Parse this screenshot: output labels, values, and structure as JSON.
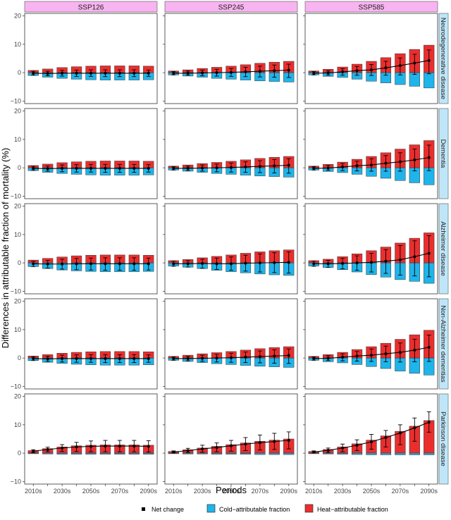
{
  "chart_data": {
    "type": "bar",
    "title": "",
    "xlabel": "Periods",
    "ylabel": "Differences in attributable fraction of mortality (%)",
    "ylim": [
      -10,
      20
    ],
    "yticks": [
      -10,
      0,
      10,
      20
    ],
    "categories": [
      "2010s",
      "2020s",
      "2030s",
      "2040s",
      "2050s",
      "2060s",
      "2070s",
      "2080s",
      "2090s"
    ],
    "xtick_labels": [
      "2010s",
      "2030s",
      "2050s",
      "2070s",
      "2090s"
    ],
    "scenarios": [
      "SSP126",
      "SSP245",
      "SSP585"
    ],
    "diseases": [
      "Neurodegenerative disease",
      "Dementia",
      "Alzheimer disease",
      "Non-Alzheimer dementias",
      "Parkinson disease"
    ],
    "legend": {
      "net": "Net change",
      "cold": "Cold−attributable fraction",
      "heat": "Heat−attributable fraction"
    },
    "colors": {
      "cold": "#1fb4ea",
      "heat": "#ea2e2e",
      "strip_top": "#f8b4f0",
      "strip_right": "#bfe6f8",
      "net": "#000000"
    },
    "panels": [
      {
        "scenario": "SSP126",
        "disease": "Neurodegenerative disease",
        "heat": [
          0.8,
          1.3,
          1.8,
          2.1,
          2.3,
          2.4,
          2.4,
          2.4,
          2.3
        ],
        "cold": [
          -1.0,
          -1.6,
          -2.0,
          -2.3,
          -2.5,
          -2.6,
          -2.6,
          -2.6,
          -2.5
        ],
        "net": [
          -0.2,
          -0.3,
          -0.2,
          -0.2,
          -0.2,
          -0.2,
          -0.2,
          -0.2,
          -0.2
        ],
        "err": [
          [
            -0.9,
            0.5
          ],
          [
            -1.1,
            0.5
          ],
          [
            -1.2,
            0.8
          ],
          [
            -1.3,
            0.9
          ],
          [
            -1.3,
            1.0
          ],
          [
            -1.4,
            1.0
          ],
          [
            -1.4,
            1.0
          ],
          [
            -1.4,
            1.0
          ],
          [
            -1.3,
            0.9
          ]
        ]
      },
      {
        "scenario": "SSP245",
        "disease": "Neurodegenerative disease",
        "heat": [
          0.6,
          1.0,
          1.5,
          1.9,
          2.3,
          2.8,
          3.3,
          3.7,
          4.0
        ],
        "cold": [
          -0.8,
          -1.2,
          -1.6,
          -2.0,
          -2.3,
          -2.6,
          -2.9,
          -3.1,
          -3.3
        ],
        "net": [
          -0.2,
          -0.2,
          -0.1,
          0.0,
          0.1,
          0.3,
          0.5,
          0.7,
          0.9
        ],
        "err": [
          [
            -0.8,
            0.4
          ],
          [
            -0.9,
            0.6
          ],
          [
            -1.1,
            0.9
          ],
          [
            -1.2,
            1.2
          ],
          [
            -1.3,
            1.5
          ],
          [
            -1.4,
            1.9
          ],
          [
            -1.5,
            2.3
          ],
          [
            -1.6,
            2.7
          ],
          [
            -1.7,
            3.0
          ]
        ]
      },
      {
        "scenario": "SSP585",
        "disease": "Neurodegenerative disease",
        "heat": [
          0.6,
          1.2,
          2.0,
          3.0,
          4.0,
          5.3,
          6.7,
          8.2,
          9.7
        ],
        "cold": [
          -0.8,
          -1.3,
          -1.7,
          -2.3,
          -3.0,
          -3.6,
          -4.2,
          -4.8,
          -5.4
        ],
        "net": [
          -0.2,
          -0.1,
          0.3,
          0.7,
          1.0,
          1.7,
          2.5,
          3.4,
          4.3
        ],
        "err": [
          [
            -0.8,
            0.4
          ],
          [
            -0.9,
            0.7
          ],
          [
            -0.9,
            1.4
          ],
          [
            -0.9,
            2.2
          ],
          [
            -1.0,
            2.9
          ],
          [
            -0.9,
            4.0
          ],
          [
            -0.8,
            5.2
          ],
          [
            -0.6,
            6.5
          ],
          [
            -0.4,
            8.0
          ]
        ]
      },
      {
        "scenario": "SSP126",
        "disease": "Dementia",
        "heat": [
          0.8,
          1.3,
          1.8,
          2.1,
          2.3,
          2.4,
          2.4,
          2.4,
          2.3
        ],
        "cold": [
          -1.0,
          -1.6,
          -2.0,
          -2.3,
          -2.5,
          -2.6,
          -2.6,
          -2.6,
          -2.5
        ],
        "net": [
          -0.2,
          -0.3,
          -0.2,
          -0.2,
          -0.2,
          -0.2,
          -0.2,
          -0.2,
          -0.2
        ],
        "err": [
          [
            -0.9,
            0.5
          ],
          [
            -1.2,
            0.6
          ],
          [
            -1.4,
            1.0
          ],
          [
            -1.5,
            1.1
          ],
          [
            -1.5,
            1.2
          ],
          [
            -1.6,
            1.2
          ],
          [
            -1.6,
            1.2
          ],
          [
            -1.6,
            1.2
          ],
          [
            -1.5,
            1.1
          ]
        ]
      },
      {
        "scenario": "SSP245",
        "disease": "Dementia",
        "heat": [
          0.6,
          1.0,
          1.5,
          1.9,
          2.3,
          2.8,
          3.3,
          3.7,
          4.0
        ],
        "cold": [
          -0.8,
          -1.2,
          -1.6,
          -2.0,
          -2.3,
          -2.6,
          -2.9,
          -3.1,
          -3.3
        ],
        "net": [
          -0.2,
          -0.2,
          -0.1,
          0.0,
          0.1,
          0.3,
          0.5,
          0.7,
          0.9
        ],
        "err": [
          [
            -0.8,
            0.4
          ],
          [
            -1.0,
            0.6
          ],
          [
            -1.2,
            1.0
          ],
          [
            -1.4,
            1.3
          ],
          [
            -1.5,
            1.7
          ],
          [
            -1.6,
            2.1
          ],
          [
            -1.7,
            2.5
          ],
          [
            -1.8,
            2.9
          ],
          [
            -1.9,
            3.2
          ]
        ]
      },
      {
        "scenario": "SSP585",
        "disease": "Dementia",
        "heat": [
          0.6,
          1.2,
          2.0,
          3.0,
          4.0,
          5.3,
          6.6,
          8.1,
          9.6
        ],
        "cold": [
          -0.8,
          -1.3,
          -1.7,
          -2.3,
          -3.0,
          -3.7,
          -4.5,
          -5.3,
          -6.0
        ],
        "net": [
          -0.2,
          -0.1,
          0.3,
          0.7,
          1.0,
          1.6,
          2.1,
          2.8,
          3.6
        ],
        "err": [
          [
            -0.8,
            0.4
          ],
          [
            -0.9,
            0.8
          ],
          [
            -1.0,
            1.5
          ],
          [
            -1.1,
            2.3
          ],
          [
            -1.2,
            3.2
          ],
          [
            -1.2,
            4.3
          ],
          [
            -1.2,
            5.3
          ],
          [
            -1.1,
            6.6
          ],
          [
            -1.0,
            8.0
          ]
        ]
      },
      {
        "scenario": "SSP126",
        "disease": "Alzheimer disease",
        "heat": [
          1.0,
          1.6,
          2.1,
          2.5,
          2.7,
          2.8,
          2.8,
          2.8,
          2.7
        ],
        "cold": [
          -1.3,
          -2.0,
          -2.5,
          -2.8,
          -3.0,
          -3.1,
          -3.1,
          -3.1,
          -3.0
        ],
        "net": [
          -0.3,
          -0.4,
          -0.4,
          -0.3,
          -0.3,
          -0.3,
          -0.3,
          -0.3,
          -0.3
        ],
        "err": [
          [
            -1.3,
            0.6
          ],
          [
            -1.8,
            0.9
          ],
          [
            -2.2,
            1.3
          ],
          [
            -2.4,
            1.6
          ],
          [
            -2.5,
            1.7
          ],
          [
            -2.6,
            1.8
          ],
          [
            -2.6,
            1.8
          ],
          [
            -2.6,
            1.8
          ],
          [
            -2.5,
            1.7
          ]
        ]
      },
      {
        "scenario": "SSP245",
        "disease": "Alzheimer disease",
        "heat": [
          0.8,
          1.2,
          1.8,
          2.3,
          2.8,
          3.4,
          3.9,
          4.3,
          4.6
        ],
        "cold": [
          -1.1,
          -1.5,
          -2.0,
          -2.6,
          -3.1,
          -3.5,
          -3.9,
          -4.2,
          -4.4
        ],
        "net": [
          -0.3,
          -0.3,
          -0.2,
          -0.3,
          -0.3,
          -0.1,
          0.0,
          0.1,
          0.2
        ],
        "err": [
          [
            -1.2,
            0.6
          ],
          [
            -1.5,
            0.8
          ],
          [
            -1.9,
            1.3
          ],
          [
            -2.3,
            1.7
          ],
          [
            -2.6,
            2.1
          ],
          [
            -2.9,
            2.7
          ],
          [
            -3.2,
            3.2
          ],
          [
            -3.4,
            3.6
          ],
          [
            -3.6,
            3.9
          ]
        ]
      },
      {
        "scenario": "SSP585",
        "disease": "Alzheimer disease",
        "heat": [
          0.8,
          1.3,
          2.2,
          3.2,
          4.3,
          5.6,
          7.0,
          8.7,
          10.6
        ],
        "cold": [
          -1.1,
          -1.6,
          -2.4,
          -3.2,
          -4.1,
          -5.0,
          -5.9,
          -6.5,
          -7.2
        ],
        "net": [
          -0.3,
          -0.3,
          -0.2,
          0.0,
          0.2,
          0.6,
          1.1,
          2.2,
          3.4
        ],
        "err": [
          [
            -1.2,
            0.6
          ],
          [
            -1.6,
            0.9
          ],
          [
            -2.1,
            1.6
          ],
          [
            -2.6,
            2.5
          ],
          [
            -3.2,
            3.4
          ],
          [
            -3.7,
            4.7
          ],
          [
            -4.3,
            6.1
          ],
          [
            -4.6,
            7.8
          ],
          [
            -4.9,
            9.6
          ]
        ]
      },
      {
        "scenario": "SSP126",
        "disease": "Non-Alzheimer dementias",
        "heat": [
          0.7,
          1.2,
          1.7,
          2.0,
          2.2,
          2.3,
          2.3,
          2.3,
          2.2
        ],
        "cold": [
          -0.9,
          -1.5,
          -1.9,
          -2.2,
          -2.4,
          -2.5,
          -2.5,
          -2.5,
          -2.4
        ],
        "net": [
          -0.2,
          -0.3,
          -0.2,
          -0.2,
          -0.2,
          -0.2,
          -0.2,
          -0.2,
          -0.2
        ],
        "err": [
          [
            -0.9,
            0.5
          ],
          [
            -1.2,
            0.6
          ],
          [
            -1.4,
            1.0
          ],
          [
            -1.5,
            1.1
          ],
          [
            -1.5,
            1.2
          ],
          [
            -1.6,
            1.2
          ],
          [
            -1.6,
            1.2
          ],
          [
            -1.6,
            1.2
          ],
          [
            -1.5,
            1.1
          ]
        ]
      },
      {
        "scenario": "SSP245",
        "disease": "Non-Alzheimer dementias",
        "heat": [
          0.6,
          1.0,
          1.5,
          1.9,
          2.3,
          2.8,
          3.3,
          3.7,
          4.0
        ],
        "cold": [
          -0.8,
          -1.2,
          -1.6,
          -2.0,
          -2.3,
          -2.6,
          -2.9,
          -3.1,
          -3.3
        ],
        "net": [
          -0.2,
          -0.2,
          -0.1,
          0.0,
          0.1,
          0.3,
          0.5,
          0.7,
          0.9
        ],
        "err": [
          [
            -0.8,
            0.4
          ],
          [
            -1.0,
            0.6
          ],
          [
            -1.2,
            1.0
          ],
          [
            -1.4,
            1.3
          ],
          [
            -1.5,
            1.7
          ],
          [
            -1.6,
            2.1
          ],
          [
            -1.7,
            2.5
          ],
          [
            -1.8,
            2.9
          ],
          [
            -1.9,
            3.2
          ]
        ]
      },
      {
        "scenario": "SSP585",
        "disease": "Non-Alzheimer dementias",
        "heat": [
          0.6,
          1.2,
          2.0,
          3.0,
          4.0,
          5.2,
          6.6,
          8.2,
          9.8
        ],
        "cold": [
          -0.8,
          -1.3,
          -1.7,
          -2.3,
          -3.0,
          -3.7,
          -4.6,
          -5.4,
          -6.0
        ],
        "net": [
          -0.2,
          -0.1,
          0.3,
          0.7,
          1.0,
          1.5,
          2.0,
          2.8,
          3.8
        ],
        "err": [
          [
            -0.8,
            0.4
          ],
          [
            -0.9,
            0.8
          ],
          [
            -1.0,
            1.5
          ],
          [
            -1.1,
            2.3
          ],
          [
            -1.2,
            3.2
          ],
          [
            -1.3,
            4.2
          ],
          [
            -1.4,
            5.3
          ],
          [
            -1.3,
            6.6
          ],
          [
            -1.2,
            8.1
          ]
        ]
      },
      {
        "scenario": "SSP126",
        "disease": "Parkinson disease",
        "heat": [
          0.9,
          1.6,
          2.2,
          2.6,
          2.8,
          2.9,
          2.9,
          2.9,
          2.8
        ],
        "cold": [
          -0.2,
          -0.3,
          -0.4,
          -0.4,
          -0.4,
          -0.4,
          -0.4,
          -0.4,
          -0.4
        ],
        "net": [
          0.7,
          1.3,
          1.8,
          2.2,
          2.4,
          2.5,
          2.5,
          2.5,
          2.4
        ],
        "err": [
          [
            0.2,
            1.2
          ],
          [
            0.5,
            2.1
          ],
          [
            0.6,
            3.0
          ],
          [
            0.6,
            3.8
          ],
          [
            0.5,
            4.3
          ],
          [
            0.5,
            4.5
          ],
          [
            0.5,
            4.5
          ],
          [
            0.5,
            4.5
          ],
          [
            0.4,
            4.4
          ]
        ]
      },
      {
        "scenario": "SSP245",
        "disease": "Parkinson disease",
        "heat": [
          0.6,
          1.2,
          1.8,
          2.4,
          3.0,
          3.6,
          4.2,
          4.6,
          5.0
        ],
        "cold": [
          -0.2,
          -0.3,
          -0.3,
          -0.4,
          -0.4,
          -0.4,
          -0.5,
          -0.5,
          -0.5
        ],
        "net": [
          0.4,
          0.9,
          1.5,
          2.0,
          2.6,
          3.2,
          3.7,
          4.1,
          4.5
        ],
        "err": [
          [
            0.1,
            0.8
          ],
          [
            0.2,
            1.7
          ],
          [
            0.3,
            2.8
          ],
          [
            0.5,
            3.6
          ],
          [
            0.7,
            4.5
          ],
          [
            0.9,
            5.5
          ],
          [
            1.1,
            6.4
          ],
          [
            1.3,
            7.0
          ],
          [
            1.5,
            7.5
          ]
        ]
      },
      {
        "scenario": "SSP585",
        "disease": "Parkinson disease",
        "heat": [
          0.6,
          1.3,
          2.2,
          3.3,
          4.6,
          6.1,
          7.7,
          9.5,
          11.5
        ],
        "cold": [
          -0.2,
          -0.3,
          -0.4,
          -0.5,
          -0.6,
          -0.6,
          -0.6,
          -0.6,
          -0.6
        ],
        "net": [
          0.4,
          1.0,
          1.8,
          2.8,
          4.0,
          5.5,
          7.1,
          8.9,
          10.9
        ],
        "err": [
          [
            0.1,
            0.8
          ],
          [
            0.2,
            1.8
          ],
          [
            0.5,
            3.2
          ],
          [
            0.9,
            4.7
          ],
          [
            1.4,
            6.6
          ],
          [
            2.2,
            8.0
          ],
          [
            3.0,
            10.0
          ],
          [
            4.2,
            12.4
          ],
          [
            7.4,
            14.6
          ]
        ]
      }
    ]
  }
}
